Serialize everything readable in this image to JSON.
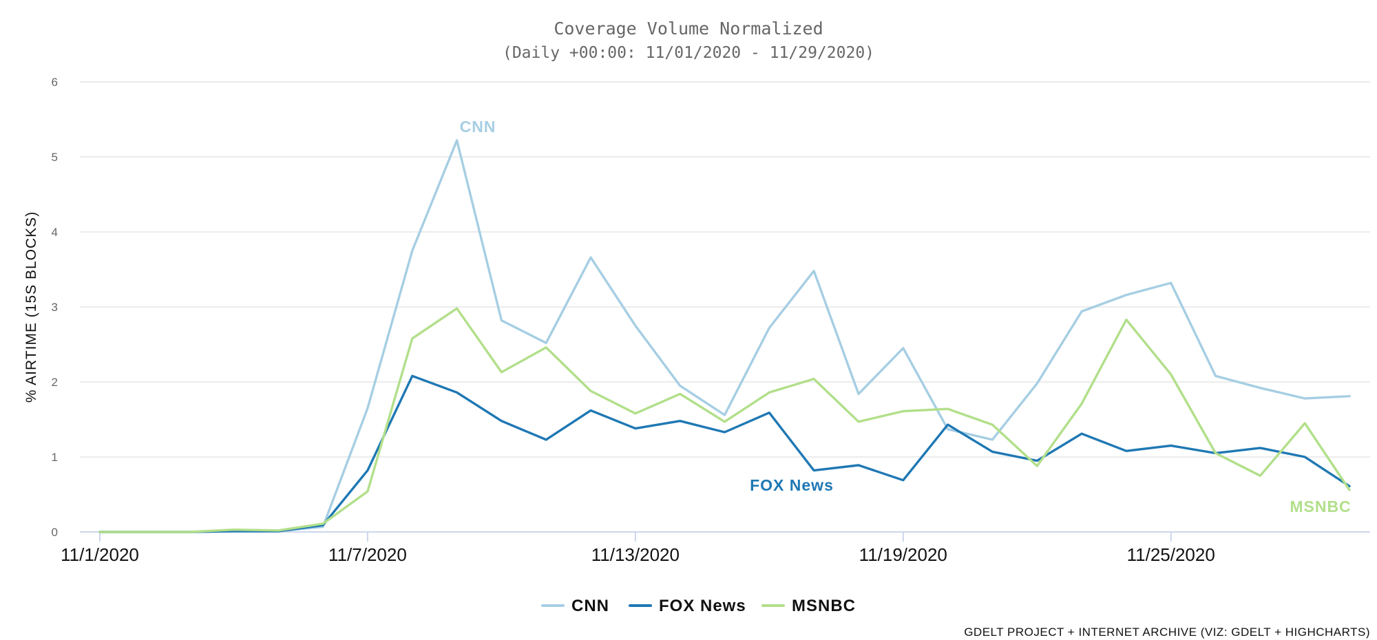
{
  "colors": {
    "CNN": "#a6cee3",
    "FOX News": "#1f78b4",
    "MSNBC": "#b2df8a",
    "grid": "#e6e6e6",
    "axis": "#ccd6eb"
  },
  "chart_data": {
    "type": "line",
    "title": "Coverage Volume Normalized",
    "subtitle": "(Daily +00:00: 11/01/2020 - 11/29/2020)",
    "ylabel": "% AIRTIME (15S BLOCKS)",
    "xlabel": "",
    "ylim": [
      0,
      6
    ],
    "yticks": [
      "0",
      "1",
      "2",
      "3",
      "4",
      "5",
      "6"
    ],
    "grid": true,
    "legend_position": "bottom-center",
    "x": [
      "11/1/2020",
      "11/2/2020",
      "11/3/2020",
      "11/4/2020",
      "11/5/2020",
      "11/6/2020",
      "11/7/2020",
      "11/8/2020",
      "11/9/2020",
      "11/10/2020",
      "11/11/2020",
      "11/12/2020",
      "11/13/2020",
      "11/14/2020",
      "11/15/2020",
      "11/16/2020",
      "11/17/2020",
      "11/18/2020",
      "11/19/2020",
      "11/20/2020",
      "11/21/2020",
      "11/22/2020",
      "11/23/2020",
      "11/24/2020",
      "11/25/2020",
      "11/26/2020",
      "11/27/2020",
      "11/28/2020",
      "11/29/2020"
    ],
    "xtick_labels": [
      "11/1/2020",
      "11/7/2020",
      "11/13/2020",
      "11/19/2020",
      "11/25/2020"
    ],
    "xtick_indices": [
      0,
      6,
      12,
      18,
      24
    ],
    "series": [
      {
        "name": "CNN",
        "values": [
          0,
          0,
          0,
          0.01,
          0.01,
          0.07,
          1.65,
          3.75,
          5.22,
          2.82,
          2.52,
          3.66,
          2.75,
          1.95,
          1.56,
          2.72,
          3.48,
          1.84,
          2.45,
          1.37,
          1.23,
          1.98,
          2.94,
          3.16,
          3.32,
          2.08,
          1.92,
          1.78,
          1.81
        ]
      },
      {
        "name": "FOX News",
        "values": [
          0,
          0,
          0,
          0.01,
          0.01,
          0.09,
          0.82,
          2.08,
          1.86,
          1.48,
          1.23,
          1.62,
          1.38,
          1.48,
          1.33,
          1.59,
          0.82,
          0.89,
          0.69,
          1.43,
          1.07,
          0.95,
          1.31,
          1.08,
          1.15,
          1.05,
          1.12,
          1.0,
          0.61
        ]
      },
      {
        "name": "MSNBC",
        "values": [
          0,
          0,
          0,
          0.03,
          0.02,
          0.11,
          0.54,
          2.58,
          2.98,
          2.13,
          2.46,
          1.88,
          1.58,
          1.84,
          1.47,
          1.86,
          2.04,
          1.47,
          1.61,
          1.64,
          1.43,
          0.88,
          1.71,
          2.83,
          2.1,
          1.05,
          0.75,
          1.45,
          0.56
        ]
      }
    ],
    "annotations": [
      {
        "text": "CNN",
        "series": "CNN"
      },
      {
        "text": "FOX News",
        "series": "FOX News"
      },
      {
        "text": "MSNBC",
        "series": "MSNBC"
      }
    ],
    "credits": "GDELT PROJECT + INTERNET ARCHIVE (VIZ: GDELT + HIGHCHARTS)"
  }
}
